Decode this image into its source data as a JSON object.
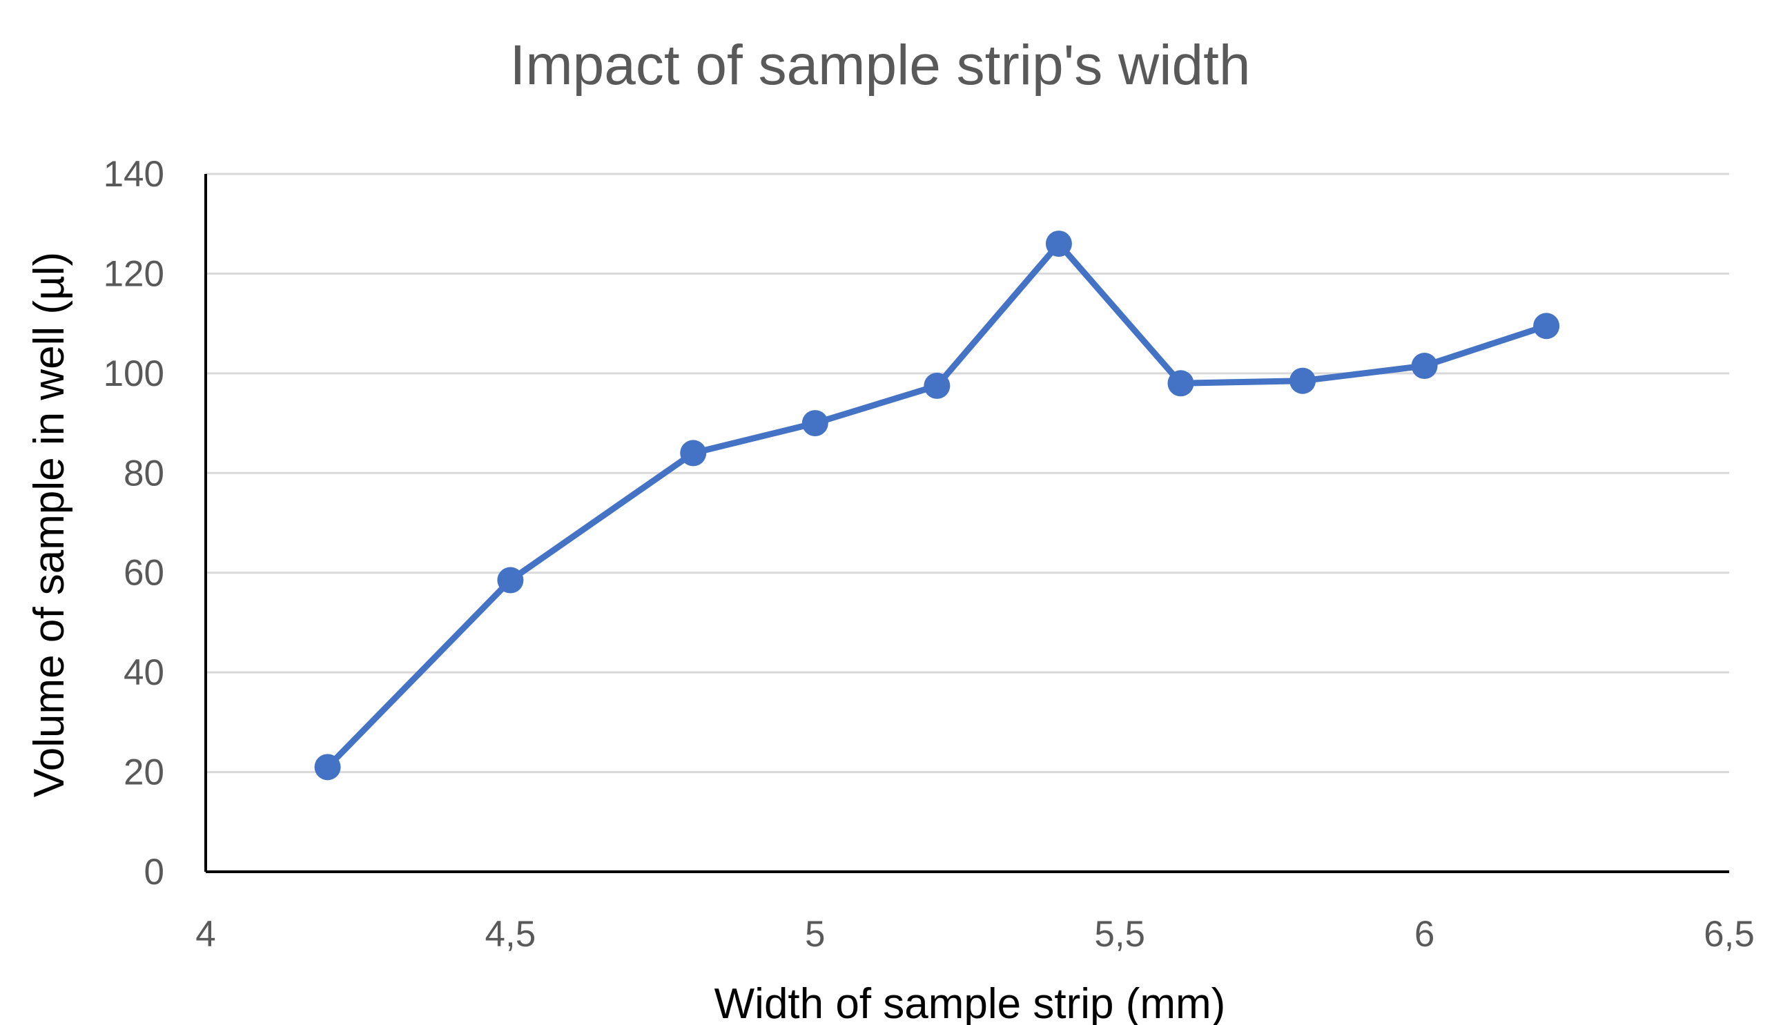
{
  "chart_data": {
    "type": "scatter",
    "title": "Impact of sample strip's width",
    "xlabel": "Width of sample strip (mm)",
    "ylabel": "Volume of sample in well (µl)",
    "xlim": [
      4,
      6.5
    ],
    "ylim": [
      0,
      140
    ],
    "x_ticks": [
      4,
      4.5,
      5,
      5.5,
      6,
      6.5
    ],
    "x_tick_labels": [
      "4",
      "4,5",
      "5",
      "5,5",
      "6",
      "6,5"
    ],
    "y_ticks": [
      0,
      20,
      40,
      60,
      80,
      100,
      120,
      140
    ],
    "y_tick_labels": [
      "0",
      "20",
      "40",
      "60",
      "80",
      "100",
      "120",
      "140"
    ],
    "grid": "horizontal",
    "legend": "none",
    "colors": {
      "series": "#4472C4",
      "gridline": "#D9D9D9",
      "axis": "#000000",
      "tick_text": "#595959",
      "title_text": "#595959"
    },
    "series": [
      {
        "x": [
          4.2,
          4.5,
          4.8,
          5.0,
          5.2,
          5.4,
          5.6,
          5.8,
          6.0,
          6.2
        ],
        "y": [
          21,
          58.5,
          84,
          90,
          97.5,
          126,
          98,
          98.5,
          101.5,
          109.5
        ]
      }
    ]
  }
}
